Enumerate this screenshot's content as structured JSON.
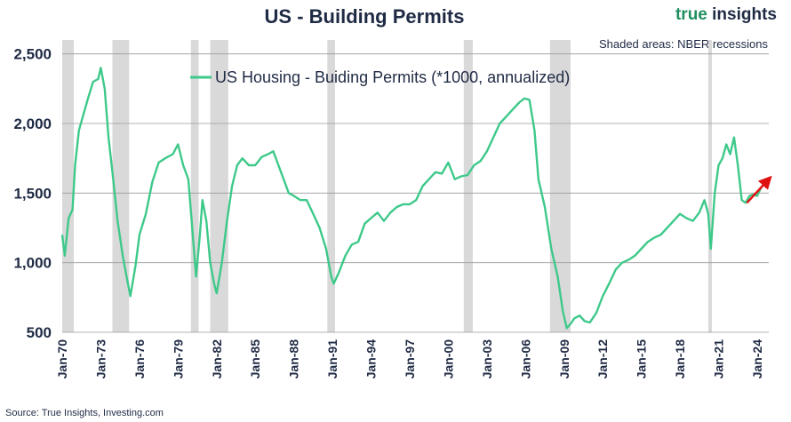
{
  "chart_data": {
    "type": "line",
    "title": "US - Building Permits",
    "brand": {
      "first": "true",
      "second": " insights"
    },
    "note": "Shaded areas: NBER recessions",
    "source": "Source: True Insights, Investing.com",
    "ylim": [
      500,
      2600
    ],
    "xlim": [
      1970.0,
      2024.9
    ],
    "y_ticks": [
      500,
      1000,
      1500,
      2000,
      2500
    ],
    "y_tick_labels": [
      "500",
      "1,000",
      "1,500",
      "2,000",
      "2,500"
    ],
    "x_ticks": [
      1970,
      1973,
      1976,
      1979,
      1982,
      1985,
      1988,
      1991,
      1994,
      1997,
      2000,
      2003,
      2006,
      2009,
      2012,
      2015,
      2018,
      2021,
      2024
    ],
    "x_tick_labels": [
      "Jan-70",
      "Jan-73",
      "Jan-76",
      "Jan-79",
      "Jan-82",
      "Jan-85",
      "Jan-88",
      "Jan-91",
      "Jan-94",
      "Jan-97",
      "Jan-00",
      "Jan-03",
      "Jan-06",
      "Jan-09",
      "Jan-12",
      "Jan-15",
      "Jan-18",
      "Jan-21",
      "Jan-24"
    ],
    "recessions": [
      [
        1970.0,
        1970.9
      ],
      [
        1973.9,
        1975.2
      ],
      [
        1980.0,
        1980.6
      ],
      [
        1981.5,
        1982.9
      ],
      [
        1990.6,
        1991.2
      ],
      [
        2001.2,
        2001.9
      ],
      [
        2007.9,
        2009.5
      ],
      [
        2020.2,
        2020.4
      ]
    ],
    "series": [
      {
        "name": "US Housing - Buiding Permits (*1000, annualized)",
        "color": "#3ec98a",
        "x": [
          1970.0,
          1970.2,
          1970.5,
          1970.8,
          1971.0,
          1971.3,
          1971.6,
          1972.0,
          1972.4,
          1972.8,
          1973.0,
          1973.3,
          1973.6,
          1973.9,
          1974.3,
          1974.7,
          1975.0,
          1975.3,
          1975.7,
          1976.0,
          1976.5,
          1977.0,
          1977.5,
          1978.0,
          1978.6,
          1979.0,
          1979.4,
          1979.8,
          1980.1,
          1980.4,
          1980.7,
          1980.9,
          1981.2,
          1981.5,
          1981.8,
          1982.0,
          1982.4,
          1982.8,
          1983.2,
          1983.6,
          1984.0,
          1984.5,
          1985.0,
          1985.5,
          1986.0,
          1986.4,
          1986.8,
          1987.2,
          1987.6,
          1988.0,
          1988.5,
          1989.0,
          1989.5,
          1990.0,
          1990.5,
          1990.9,
          1991.1,
          1991.5,
          1992.0,
          1992.5,
          1993.0,
          1993.5,
          1994.0,
          1994.5,
          1995.0,
          1995.5,
          1996.0,
          1996.5,
          1997.0,
          1997.5,
          1998.0,
          1998.5,
          1999.0,
          1999.5,
          2000.0,
          2000.5,
          2001.0,
          2001.5,
          2002.0,
          2002.5,
          2003.0,
          2003.5,
          2004.0,
          2004.5,
          2005.0,
          2005.5,
          2005.9,
          2006.3,
          2006.7,
          2007.0,
          2007.5,
          2008.0,
          2008.5,
          2008.9,
          2009.2,
          2009.5,
          2009.8,
          2010.2,
          2010.6,
          2011.0,
          2011.5,
          2012.0,
          2012.5,
          2013.0,
          2013.5,
          2014.0,
          2014.5,
          2015.0,
          2015.5,
          2016.0,
          2016.5,
          2017.0,
          2017.5,
          2018.0,
          2018.5,
          2019.0,
          2019.5,
          2019.9,
          2020.2,
          2020.4,
          2020.7,
          2021.0,
          2021.3,
          2021.6,
          2021.9,
          2022.2,
          2022.5,
          2022.8,
          2023.1,
          2023.4,
          2023.7,
          2024.0,
          2024.3
        ],
        "values": [
          1200,
          1050,
          1320,
          1380,
          1700,
          1950,
          2050,
          2180,
          2300,
          2320,
          2400,
          2250,
          1900,
          1650,
          1300,
          1050,
          900,
          760,
          980,
          1200,
          1350,
          1580,
          1720,
          1750,
          1780,
          1850,
          1700,
          1600,
          1250,
          900,
          1200,
          1450,
          1300,
          1000,
          850,
          780,
          1000,
          1300,
          1550,
          1700,
          1750,
          1700,
          1700,
          1760,
          1780,
          1800,
          1700,
          1600,
          1500,
          1480,
          1450,
          1450,
          1350,
          1250,
          1100,
          900,
          850,
          930,
          1050,
          1130,
          1150,
          1280,
          1320,
          1360,
          1300,
          1360,
          1400,
          1420,
          1420,
          1450,
          1550,
          1600,
          1650,
          1640,
          1720,
          1600,
          1620,
          1630,
          1700,
          1730,
          1800,
          1900,
          2000,
          2050,
          2100,
          2150,
          2180,
          2170,
          1950,
          1600,
          1400,
          1100,
          900,
          650,
          530,
          560,
          600,
          620,
          580,
          570,
          640,
          760,
          850,
          950,
          1000,
          1020,
          1050,
          1100,
          1150,
          1180,
          1200,
          1250,
          1300,
          1350,
          1320,
          1300,
          1360,
          1450,
          1350,
          1100,
          1500,
          1700,
          1750,
          1850,
          1780,
          1900,
          1700,
          1450,
          1430,
          1480,
          1490,
          1480,
          1540
        ]
      }
    ],
    "trend_arrow": {
      "from": [
        2023.2,
        1430
      ],
      "to": [
        2024.8,
        1590
      ],
      "color": "#e01010"
    }
  }
}
